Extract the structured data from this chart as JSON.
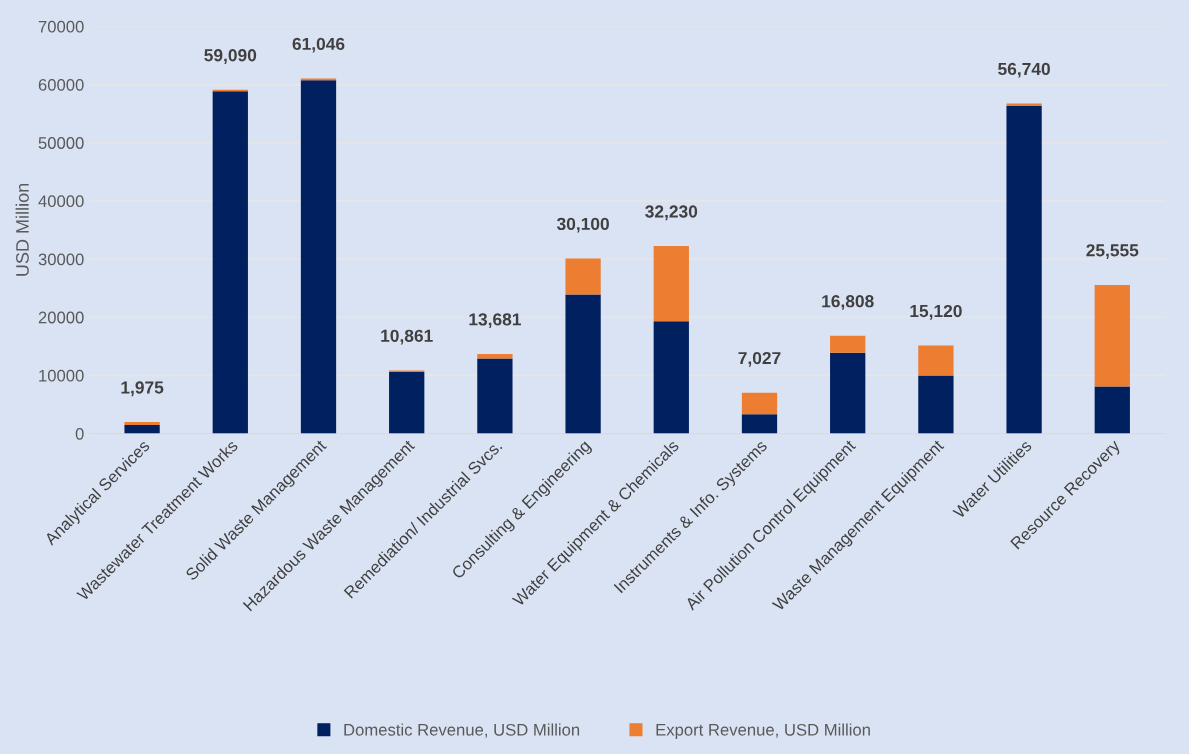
{
  "chart_data": {
    "type": "bar",
    "stacked": true,
    "ylabel": "USD Million",
    "categories": [
      "Analytical Services",
      "Wastewater Treatment Works",
      "Solid Waste Management",
      "Hazardous Waste Management",
      "Remediation/ Industrial Svcs.",
      "Consulting & Engineering",
      "Water Equipment & Chemicals",
      "Instruments & Info. Systems",
      "Air Pollution Control Equipment",
      "Waste Management Equipment",
      "Water Utilities",
      "Resource Recovery"
    ],
    "series": [
      {
        "name": "Domestic Revenue, USD Million",
        "color": "#002060",
        "values": [
          1450,
          58850,
          60750,
          10600,
          12900,
          23900,
          19300,
          3300,
          13900,
          10000,
          56300,
          8100
        ]
      },
      {
        "name": "Export Revenue, USD Million",
        "color": "#ed7d31",
        "values": [
          525,
          240,
          296,
          261,
          781,
          6200,
          12930,
          3727,
          2908,
          5120,
          440,
          17455
        ]
      }
    ],
    "totals": [
      "1,975",
      "59,090",
      "61,046",
      "10,861",
      "13,681",
      "30,100",
      "32,230",
      "7,027",
      "16,808",
      "15,120",
      "56,740",
      "25,555"
    ],
    "ylim": [
      0,
      70000
    ],
    "yticks": [
      0,
      10000,
      20000,
      30000,
      40000,
      50000,
      60000,
      70000
    ],
    "grid": "y",
    "legend": "bottom"
  }
}
